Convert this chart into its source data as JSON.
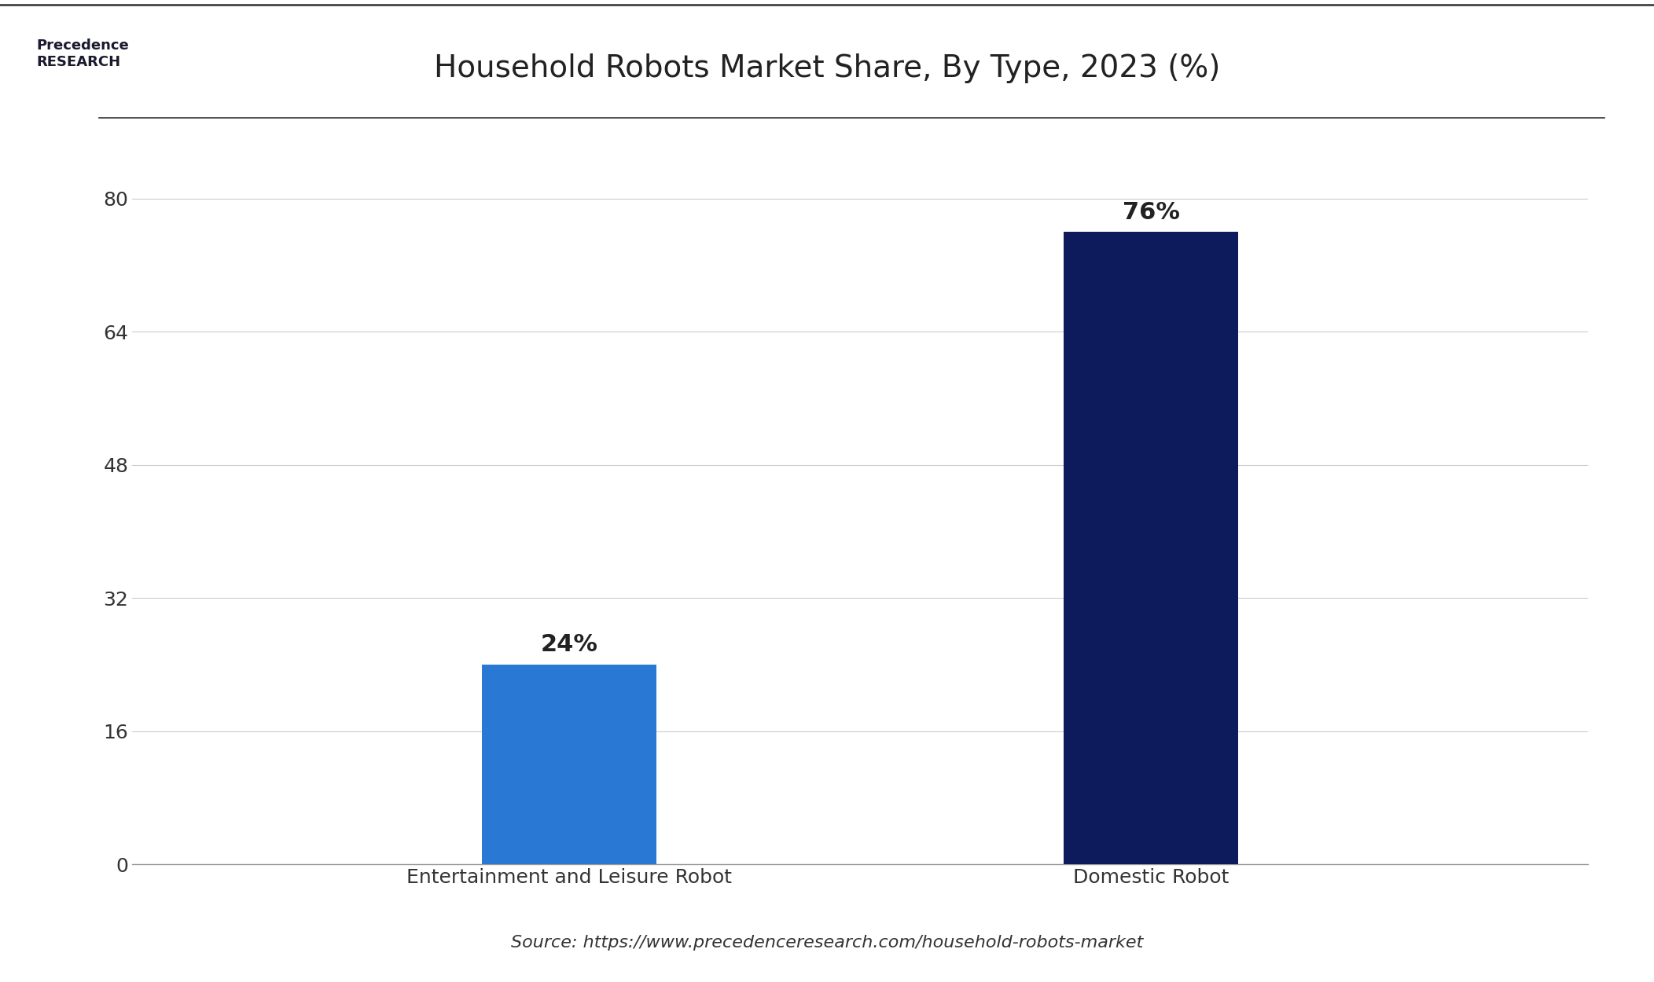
{
  "title": "Household Robots Market Share, By Type, 2023 (%)",
  "categories": [
    "Entertainment and Leisure Robot",
    "Domestic Robot"
  ],
  "values": [
    24,
    76
  ],
  "bar_colors": [
    "#2878d4",
    "#0d1a5c"
  ],
  "ylim": [
    0,
    85
  ],
  "yticks": [
    0,
    16,
    32,
    48,
    64,
    80
  ],
  "bar_labels": [
    "24%",
    "76%"
  ],
  "source_text": "Source: https://www.precedenceresearch.com/household-robots-market",
  "background_color": "#ffffff",
  "title_fontsize": 28,
  "tick_fontsize": 18,
  "label_fontsize": 18,
  "bar_label_fontsize": 22,
  "source_fontsize": 16,
  "grid_color": "#cccccc"
}
